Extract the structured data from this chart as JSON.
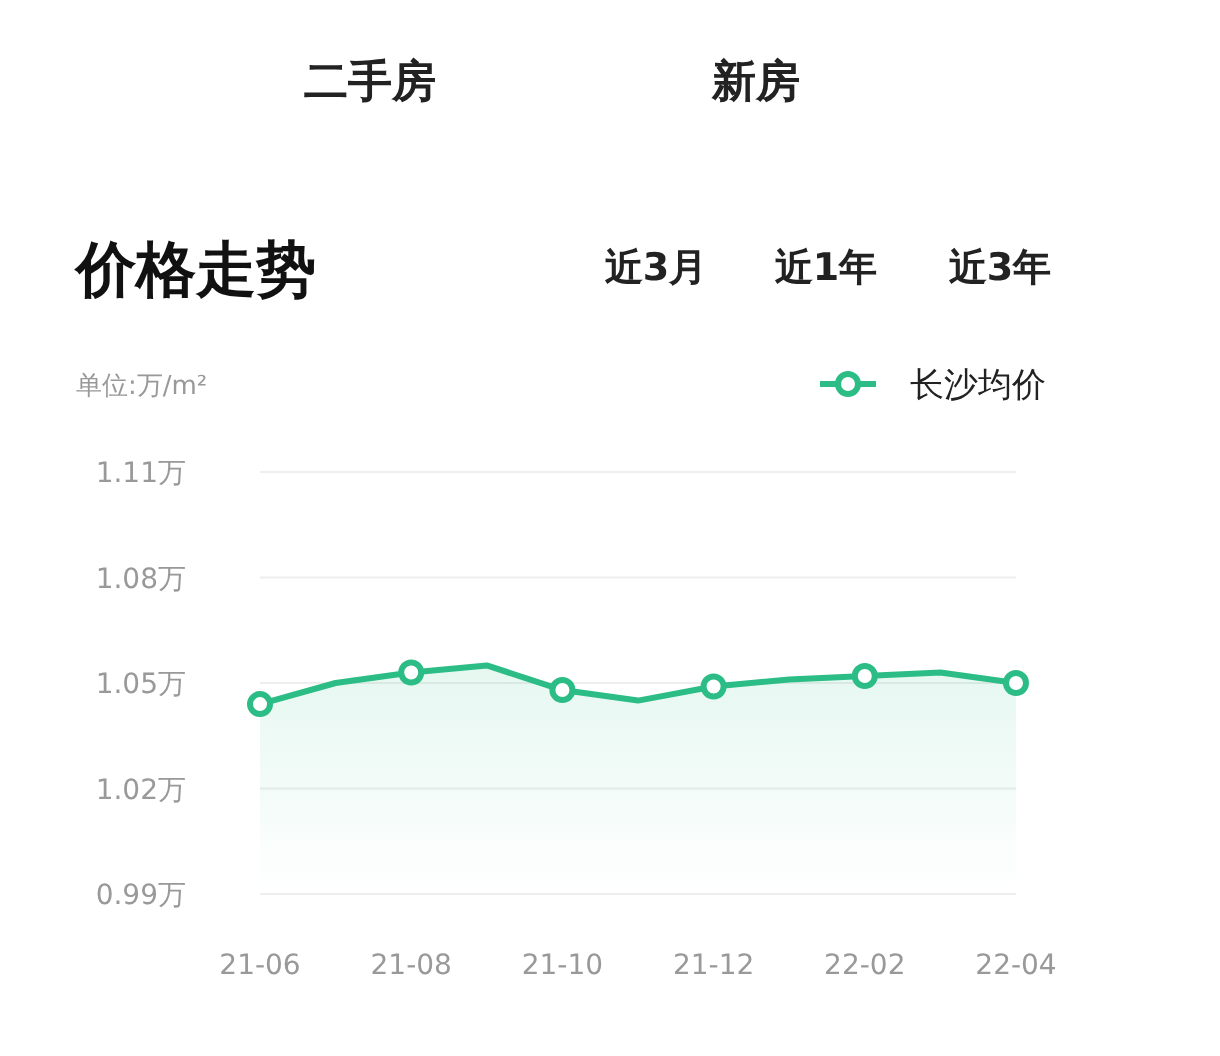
{
  "chart_data": {
    "type": "area",
    "title": "价格走势",
    "ylabel": "单位:万/m²",
    "annotations": [
      "二手房",
      "新房",
      "近3月",
      "近1年",
      "近3年"
    ],
    "categories": [
      "21-06",
      null,
      "21-08",
      null,
      "21-10",
      null,
      "21-12",
      null,
      "22-02",
      null,
      "22-04"
    ],
    "series": [
      {
        "name": "长沙均价",
        "color": "#2bbd85",
        "values": [
          1.044,
          1.05,
          1.053,
          1.055,
          1.048,
          1.045,
          1.049,
          1.051,
          1.052,
          1.053,
          1.05
        ]
      }
    ],
    "ylim": [
      0.99,
      1.11
    ],
    "yticks": [
      {
        "value": 0.99,
        "label": "0.99万"
      },
      {
        "value": 1.02,
        "label": "1.02万"
      },
      {
        "value": 1.05,
        "label": "1.05万"
      },
      {
        "value": 1.08,
        "label": "1.08万"
      },
      {
        "value": 1.11,
        "label": "1.11万"
      }
    ],
    "grid": "y",
    "legend": "top right",
    "marker": "circle"
  }
}
